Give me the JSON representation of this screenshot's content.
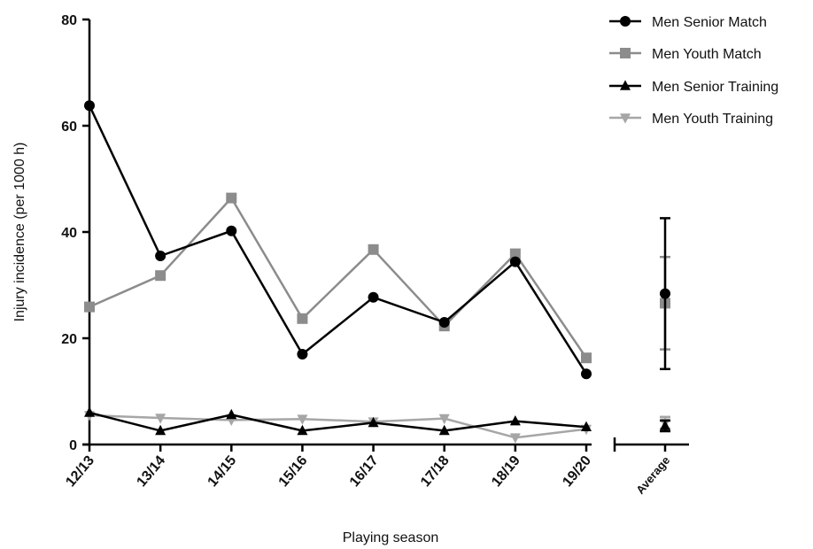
{
  "chart_data": {
    "type": "line",
    "xlabel": "Playing season",
    "ylabel": "Injury incidence (per 1000 h)",
    "categories": [
      "12/13",
      "13/14",
      "14/15",
      "15/16",
      "16/17",
      "17/18",
      "18/19",
      "19/20"
    ],
    "average_label": "Average",
    "ylim": [
      0,
      80
    ],
    "yticks": [
      "0",
      "20",
      "40",
      "60",
      "80"
    ],
    "grid": false,
    "legend_position": "top-right",
    "series": [
      {
        "name": "Men Senior Match",
        "marker": "circle",
        "color": "#000000",
        "values": [
          63.8,
          35.5,
          40.2,
          17.0,
          27.7,
          23.0,
          34.4,
          13.3
        ],
        "average": 28.4,
        "average_error": [
          14.2,
          42.6
        ]
      },
      {
        "name": "Men Youth Match",
        "marker": "square",
        "color": "#8c8c8c",
        "values": [
          25.9,
          31.8,
          46.4,
          23.7,
          36.7,
          22.3,
          35.9,
          16.3
        ],
        "average": 26.6,
        "average_error": [
          17.9,
          35.3
        ]
      },
      {
        "name": "Men Senior Training",
        "marker": "triangle-up",
        "color": "#000000",
        "values": [
          6.0,
          2.6,
          5.6,
          2.6,
          4.1,
          2.6,
          4.4,
          3.3
        ],
        "average": 3.5,
        "average_error": [
          2.5,
          4.5
        ]
      },
      {
        "name": "Men Youth Training",
        "marker": "triangle-down",
        "color": "#a6a6a6",
        "values": [
          5.5,
          5.0,
          4.6,
          4.8,
          4.3,
          4.9,
          1.3,
          2.9
        ],
        "average": 4.1,
        "average_error": [
          3.0,
          5.2
        ]
      }
    ]
  }
}
